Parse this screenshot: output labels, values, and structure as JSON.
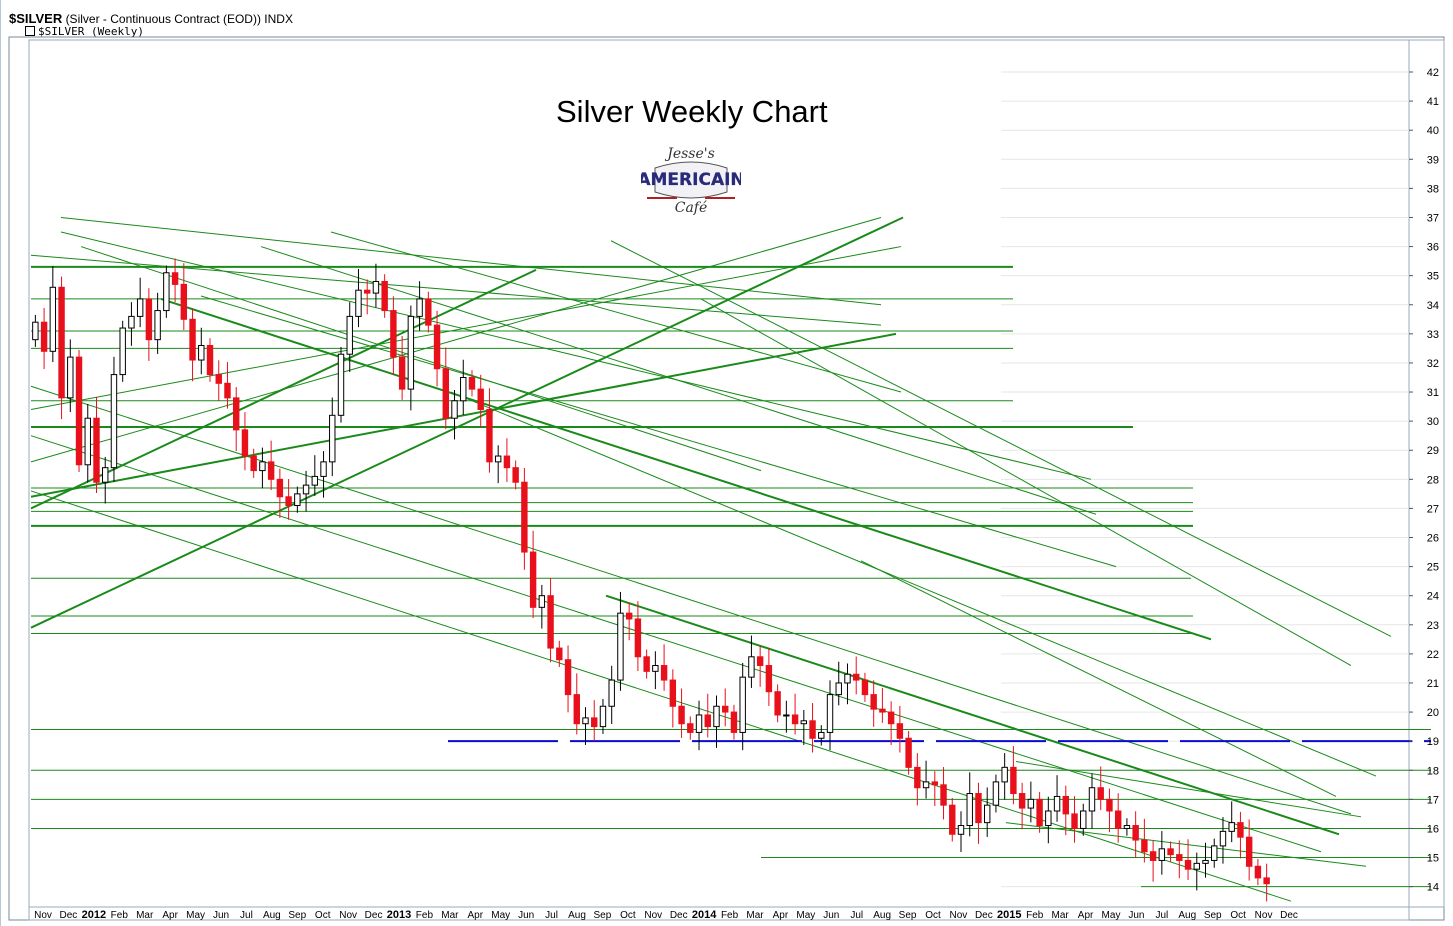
{
  "header": {
    "symbol": "$SILVER",
    "description": "(Silver - Continuous Contract (EOD))",
    "exchange": "INDX",
    "series_label": "$SILVER (Weekly)"
  },
  "logo": {
    "line1": "Jesse's",
    "line2": "AMERICAN",
    "line3": "Café"
  },
  "colors": {
    "up_candle": "#ffffff",
    "down_candle": "#e8101a",
    "trendline": "#1a8a1a",
    "support_line": "#0a0ad0",
    "grid": "#e6e6e6"
  },
  "chart_data": {
    "type": "candlestick",
    "title": "Silver Weekly Chart",
    "interval": "weekly",
    "ylim": [
      13.3,
      43.1
    ],
    "y_ticks": [
      14,
      15,
      16,
      17,
      18,
      19,
      20,
      21,
      22,
      23,
      24,
      25,
      26,
      27,
      28,
      29,
      30,
      31,
      32,
      33,
      34,
      35,
      36,
      37,
      38,
      39,
      40,
      41,
      42
    ],
    "x_labels": [
      "Nov",
      "Dec",
      "2012",
      "Feb",
      "Mar",
      "Apr",
      "May",
      "Jun",
      "Jul",
      "Aug",
      "Sep",
      "Oct",
      "Nov",
      "Dec",
      "2013",
      "Feb",
      "Mar",
      "Apr",
      "May",
      "Jun",
      "Jul",
      "Aug",
      "Sep",
      "Oct",
      "Nov",
      "Dec",
      "2014",
      "Feb",
      "Mar",
      "Apr",
      "May",
      "Jun",
      "Jul",
      "Aug",
      "Sep",
      "Oct",
      "Nov",
      "Dec",
      "2015",
      "Feb",
      "Mar",
      "Apr",
      "May",
      "Jun",
      "Jul",
      "Aug",
      "Sep",
      "Oct",
      "Nov",
      "Dec"
    ],
    "closes": [
      33.4,
      32.4,
      34.6,
      30.8,
      32.2,
      28.5,
      30.1,
      27.9,
      28.4,
      31.6,
      33.2,
      33.6,
      34.2,
      32.8,
      33.8,
      35.1,
      34.7,
      33.5,
      32.1,
      32.6,
      31.6,
      31.3,
      30.8,
      29.7,
      28.8,
      28.3,
      28.6,
      28.0,
      27.4,
      27.1,
      27.5,
      27.8,
      28.1,
      28.6,
      30.2,
      32.3,
      33.6,
      34.5,
      34.4,
      34.8,
      33.8,
      32.2,
      31.1,
      33.6,
      34.2,
      33.3,
      31.8,
      30.1,
      30.7,
      31.5,
      31.1,
      30.4,
      28.6,
      28.8,
      28.4,
      27.9,
      25.5,
      23.6,
      24.0,
      22.2,
      21.8,
      20.6,
      19.6,
      19.8,
      19.5,
      20.2,
      21.1,
      23.4,
      23.2,
      21.9,
      21.4,
      21.6,
      21.1,
      20.2,
      19.6,
      19.3,
      19.9,
      19.5,
      20.2,
      20.0,
      19.3,
      21.2,
      21.9,
      21.6,
      20.7,
      19.9,
      19.9,
      19.6,
      19.7,
      19.1,
      19.3,
      20.6,
      21.0,
      21.3,
      21.1,
      20.6,
      20.1,
      20.0,
      19.6,
      19.1,
      18.1,
      17.4,
      17.6,
      17.5,
      16.8,
      15.8,
      16.1,
      17.2,
      16.2,
      16.8,
      17.6,
      18.1,
      17.2,
      16.7,
      17.0,
      16.1,
      16.6,
      17.1,
      16.5,
      16.0,
      16.6,
      17.4,
      17.0,
      16.6,
      16.0,
      16.1,
      15.6,
      15.2,
      14.9,
      15.3,
      15.1,
      14.9,
      14.6,
      14.8,
      14.9,
      15.4,
      15.9,
      16.2,
      15.7,
      14.7,
      14.3,
      14.1
    ],
    "x_range": [
      0,
      232
    ],
    "trendlines_note": "green support/resistance trendlines and blue 19.0 support level"
  }
}
